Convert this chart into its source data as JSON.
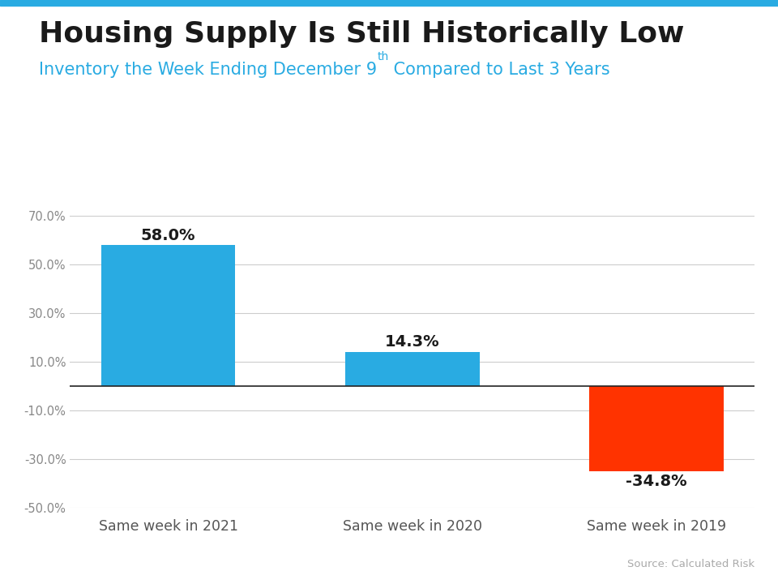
{
  "title": "Housing Supply Is Still Historically Low",
  "subtitle_part1": "Inventory the Week Ending December 9",
  "subtitle_superscript": "th",
  "subtitle_part2": " Compared to Last 3 Years",
  "categories": [
    "Same week in 2021",
    "Same week in 2020",
    "Same week in 2019"
  ],
  "values": [
    58.0,
    14.3,
    -34.8
  ],
  "bar_colors": [
    "#29ABE2",
    "#29ABE2",
    "#FF3300"
  ],
  "ylim": [
    -50,
    70
  ],
  "yticks": [
    -50,
    -30,
    -10,
    10,
    30,
    50,
    70
  ],
  "ytick_labels": [
    "-50.0%",
    "-30.0%",
    "-10.0%",
    "10.0%",
    "30.0%",
    "50.0%",
    "70.0%"
  ],
  "background_color": "#ffffff",
  "title_color": "#1a1a1a",
  "subtitle_color": "#29ABE2",
  "source_text": "Source: Calculated Risk",
  "source_color": "#aaaaaa",
  "grid_color": "#cccccc",
  "top_bar_color": "#29ABE2",
  "zero_line_color": "#222222"
}
